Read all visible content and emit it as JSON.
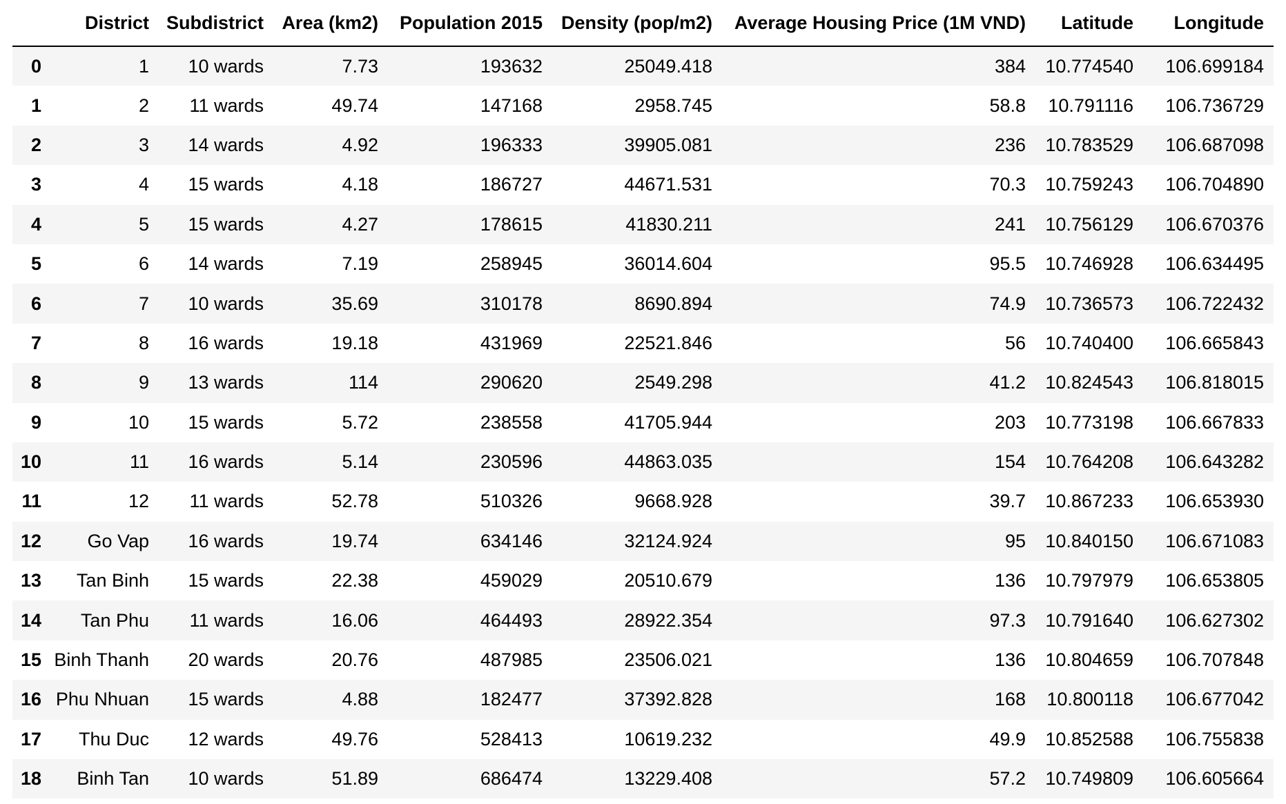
{
  "columns": [
    "",
    "District",
    "Subdistrict",
    "Area (km2)",
    "Population 2015",
    "Density (pop/m2)",
    "Average Housing Price (1M VND)",
    "Latitude",
    "Longitude"
  ],
  "rows": [
    [
      "0",
      "1",
      "10 wards",
      "7.73",
      "193632",
      "25049.418",
      "384",
      "10.774540",
      "106.699184"
    ],
    [
      "1",
      "2",
      "11 wards",
      "49.74",
      "147168",
      "2958.745",
      "58.8",
      "10.791116",
      "106.736729"
    ],
    [
      "2",
      "3",
      "14 wards",
      "4.92",
      "196333",
      "39905.081",
      "236",
      "10.783529",
      "106.687098"
    ],
    [
      "3",
      "4",
      "15 wards",
      "4.18",
      "186727",
      "44671.531",
      "70.3",
      "10.759243",
      "106.704890"
    ],
    [
      "4",
      "5",
      "15 wards",
      "4.27",
      "178615",
      "41830.211",
      "241",
      "10.756129",
      "106.670376"
    ],
    [
      "5",
      "6",
      "14 wards",
      "7.19",
      "258945",
      "36014.604",
      "95.5",
      "10.746928",
      "106.634495"
    ],
    [
      "6",
      "7",
      "10 wards",
      "35.69",
      "310178",
      "8690.894",
      "74.9",
      "10.736573",
      "106.722432"
    ],
    [
      "7",
      "8",
      "16 wards",
      "19.18",
      "431969",
      "22521.846",
      "56",
      "10.740400",
      "106.665843"
    ],
    [
      "8",
      "9",
      "13 wards",
      "114",
      "290620",
      "2549.298",
      "41.2",
      "10.824543",
      "106.818015"
    ],
    [
      "9",
      "10",
      "15 wards",
      "5.72",
      "238558",
      "41705.944",
      "203",
      "10.773198",
      "106.667833"
    ],
    [
      "10",
      "11",
      "16 wards",
      "5.14",
      "230596",
      "44863.035",
      "154",
      "10.764208",
      "106.643282"
    ],
    [
      "11",
      "12",
      "11 wards",
      "52.78",
      "510326",
      "9668.928",
      "39.7",
      "10.867233",
      "106.653930"
    ],
    [
      "12",
      "Go Vap",
      "16 wards",
      "19.74",
      "634146",
      "32124.924",
      "95",
      "10.840150",
      "106.671083"
    ],
    [
      "13",
      "Tan Binh",
      "15 wards",
      "22.38",
      "459029",
      "20510.679",
      "136",
      "10.797979",
      "106.653805"
    ],
    [
      "14",
      "Tan Phu",
      "11 wards",
      "16.06",
      "464493",
      "28922.354",
      "97.3",
      "10.791640",
      "106.627302"
    ],
    [
      "15",
      "Binh Thanh",
      "20 wards",
      "20.76",
      "487985",
      "23506.021",
      "136",
      "10.804659",
      "106.707848"
    ],
    [
      "16",
      "Phu Nhuan",
      "15 wards",
      "4.88",
      "182477",
      "37392.828",
      "168",
      "10.800118",
      "106.677042"
    ],
    [
      "17",
      "Thu Duc",
      "12 wards",
      "49.76",
      "528413",
      "10619.232",
      "49.9",
      "10.852588",
      "106.755838"
    ],
    [
      "18",
      "Binh Tan",
      "10 wards",
      "51.89",
      "686474",
      "13229.408",
      "57.2",
      "10.749809",
      "106.605664"
    ]
  ],
  "colors": {
    "stripe": "#f5f5f5",
    "background": "#ffffff",
    "text": "#000000"
  }
}
